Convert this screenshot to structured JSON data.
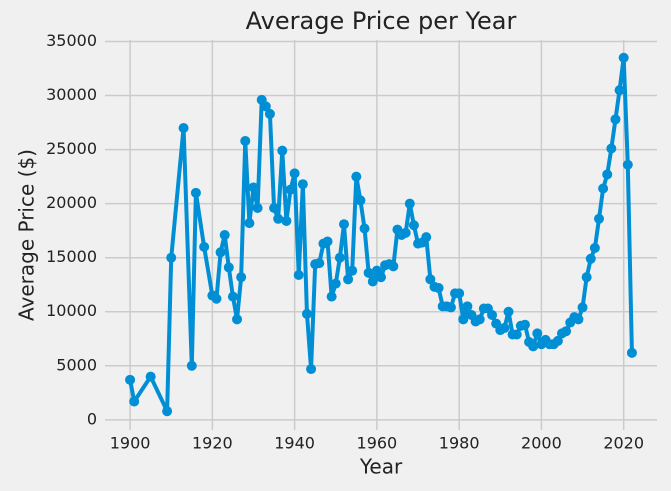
{
  "chart_data": {
    "type": "line",
    "title": "Average Price per Year",
    "x_label": "Year",
    "y_label": "Average Price ($)",
    "color": "#008fd5",
    "grid": true,
    "xlim": [
      1893.9,
      2028.1
    ],
    "ylim": [
      -940,
      35140
    ],
    "xticks": [
      1900,
      1920,
      1940,
      1960,
      1980,
      2000,
      2020
    ],
    "yticks": [
      0,
      5000,
      10000,
      15000,
      20000,
      25000,
      30000,
      35000
    ],
    "x": [
      1900,
      1901,
      1905,
      1909,
      1910,
      1913,
      1915,
      1916,
      1918,
      1920,
      1921,
      1922,
      1923,
      1924,
      1925,
      1926,
      1927,
      1928,
      1929,
      1930,
      1931,
      1932,
      1933,
      1934,
      1935,
      1936,
      1937,
      1938,
      1939,
      1940,
      1941,
      1942,
      1943,
      1944,
      1945,
      1946,
      1947,
      1948,
      1949,
      1950,
      1951,
      1952,
      1953,
      1954,
      1955,
      1956,
      1957,
      1958,
      1959,
      1960,
      1961,
      1962,
      1963,
      1964,
      1965,
      1966,
      1967,
      1968,
      1969,
      1970,
      1971,
      1972,
      1973,
      1974,
      1975,
      1976,
      1977,
      1978,
      1979,
      1980,
      1981,
      1982,
      1983,
      1984,
      1985,
      1986,
      1987,
      1988,
      1989,
      1990,
      1991,
      1992,
      1993,
      1994,
      1995,
      1996,
      1997,
      1998,
      1999,
      2000,
      2001,
      2002,
      2003,
      2004,
      2005,
      2006,
      2007,
      2008,
      2009,
      2010,
      2011,
      2012,
      2013,
      2014,
      2015,
      2016,
      2017,
      2018,
      2019,
      2020,
      2021,
      2022
    ],
    "values": [
      3700,
      1700,
      4000,
      800,
      15000,
      27000,
      5000,
      21000,
      16000,
      11500,
      11200,
      15500,
      17100,
      14100,
      11400,
      9300,
      13200,
      25800,
      18200,
      21500,
      19600,
      29600,
      29000,
      28300,
      19600,
      18600,
      24900,
      18400,
      21300,
      22800,
      13400,
      21800,
      9800,
      4700,
      14400,
      14500,
      16300,
      16500,
      11400,
      12600,
      15000,
      18100,
      13000,
      13800,
      22500,
      20300,
      17700,
      13600,
      12800,
      13800,
      13200,
      14300,
      14400,
      14200,
      17600,
      17100,
      17300,
      20000,
      18000,
      16300,
      16400,
      16900,
      13000,
      12300,
      12200,
      10500,
      10500,
      10400,
      11700,
      11700,
      9300,
      10500,
      9700,
      9100,
      9300,
      10300,
      10300,
      9700,
      8900,
      8300,
      8500,
      10000,
      7900,
      7900,
      8700,
      8800,
      7200,
      6800,
      8000,
      7000,
      7400,
      7000,
      7000,
      7300,
      8000,
      8200,
      9000,
      9500,
      9300,
      10400,
      13200,
      14900,
      15900,
      18600,
      21400,
      22700,
      25100,
      27800,
      30500,
      33500,
      23600,
      6200
    ]
  }
}
